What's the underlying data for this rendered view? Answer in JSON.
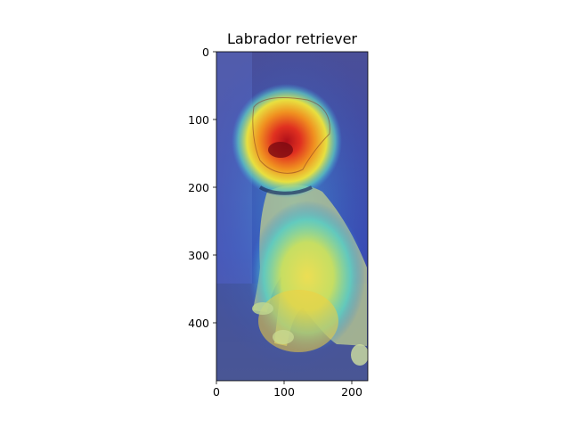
{
  "figure": {
    "title": "Labrador retriever",
    "x_ticks": [
      "0",
      "100",
      "200"
    ],
    "y_ticks": [
      "0",
      "100",
      "200",
      "300",
      "400"
    ],
    "x_tick_values": [
      0,
      100,
      200
    ],
    "y_tick_values": [
      0,
      100,
      200,
      300,
      400
    ],
    "x_range": [
      0,
      224
    ],
    "y_range": [
      0,
      485
    ],
    "colormap": "jet",
    "overlay": "class activation heatmap over photo of a sitting yellow Labrador retriever",
    "colors": {
      "hot": "#d0202a",
      "warm": "#f0a020",
      "mid": "#e8e040",
      "cool": "#40c0d0",
      "cold": "#2840c0",
      "background": "#3a46a0"
    }
  }
}
